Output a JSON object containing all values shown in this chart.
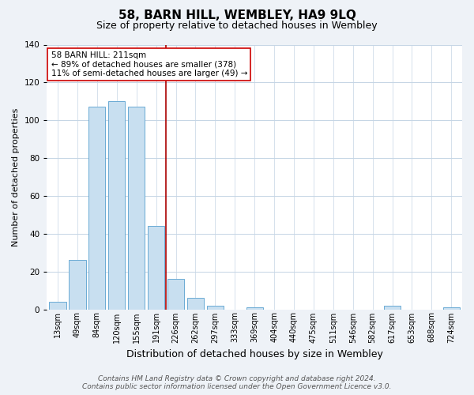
{
  "title": "58, BARN HILL, WEMBLEY, HA9 9LQ",
  "subtitle": "Size of property relative to detached houses in Wembley",
  "xlabel": "Distribution of detached houses by size in Wembley",
  "ylabel": "Number of detached properties",
  "bar_color": "#c8dff0",
  "bar_edge_color": "#6aaad4",
  "categories": [
    "13sqm",
    "49sqm",
    "84sqm",
    "120sqm",
    "155sqm",
    "191sqm",
    "226sqm",
    "262sqm",
    "297sqm",
    "333sqm",
    "369sqm",
    "404sqm",
    "440sqm",
    "475sqm",
    "511sqm",
    "546sqm",
    "582sqm",
    "617sqm",
    "653sqm",
    "688sqm",
    "724sqm"
  ],
  "values": [
    4,
    26,
    107,
    110,
    107,
    44,
    16,
    6,
    2,
    0,
    1,
    0,
    0,
    0,
    0,
    0,
    0,
    2,
    0,
    0,
    1
  ],
  "ylim": [
    0,
    140
  ],
  "yticks": [
    0,
    20,
    40,
    60,
    80,
    100,
    120,
    140
  ],
  "vline_x": 5.5,
  "annotation_title": "58 BARN HILL: 211sqm",
  "annotation_line1": "← 89% of detached houses are smaller (378)",
  "annotation_line2": "11% of semi-detached houses are larger (49) →",
  "footer_line1": "Contains HM Land Registry data © Crown copyright and database right 2024.",
  "footer_line2": "Contains public sector information licensed under the Open Government Licence v3.0.",
  "background_color": "#eef2f7",
  "plot_background": "#ffffff",
  "grid_color": "#c5d5e5",
  "vline_color": "#aa0000",
  "annotation_box_color": "#ffffff",
  "annotation_box_edge": "#cc0000",
  "title_fontsize": 11,
  "subtitle_fontsize": 9,
  "ylabel_fontsize": 8,
  "xlabel_fontsize": 9,
  "tick_fontsize": 7,
  "annotation_fontsize": 7.5,
  "footer_fontsize": 6.5
}
